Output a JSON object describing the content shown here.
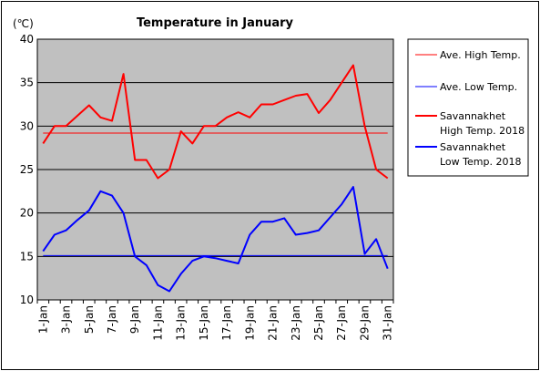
{
  "chart_data": {
    "type": "line",
    "title": "Temperature in January",
    "ylabel": "(℃)",
    "xlabel": "",
    "ylim": [
      10,
      40
    ],
    "yticks": [
      10,
      15,
      20,
      25,
      30,
      35,
      40
    ],
    "grid": true,
    "legend_position": "right",
    "x": [
      "1-Jan",
      "2-Jan",
      "3-Jan",
      "4-Jan",
      "5-Jan",
      "6-Jan",
      "7-Jan",
      "8-Jan",
      "9-Jan",
      "10-Jan",
      "11-Jan",
      "12-Jan",
      "13-Jan",
      "14-Jan",
      "15-Jan",
      "16-Jan",
      "17-Jan",
      "18-Jan",
      "19-Jan",
      "20-Jan",
      "21-Jan",
      "22-Jan",
      "23-Jan",
      "24-Jan",
      "25-Jan",
      "26-Jan",
      "27-Jan",
      "28-Jan",
      "29-Jan",
      "30-Jan",
      "31-Jan"
    ],
    "xtick_labels": [
      "1-Jan",
      "3-Jan",
      "5-Jan",
      "7-Jan",
      "9-Jan",
      "11-Jan",
      "13-Jan",
      "15-Jan",
      "17-Jan",
      "19-Jan",
      "21-Jan",
      "23-Jan",
      "25-Jan",
      "27-Jan",
      "29-Jan",
      "31-Jan"
    ],
    "series": [
      {
        "name": "Ave. High Temp.",
        "color": "#ff0000",
        "style": "thin",
        "values": [
          29.2,
          29.2,
          29.2,
          29.2,
          29.2,
          29.2,
          29.2,
          29.2,
          29.2,
          29.2,
          29.2,
          29.2,
          29.2,
          29.2,
          29.2,
          29.2,
          29.2,
          29.2,
          29.2,
          29.2,
          29.2,
          29.2,
          29.2,
          29.2,
          29.2,
          29.2,
          29.2,
          29.2,
          29.2,
          29.2,
          29.2
        ]
      },
      {
        "name": "Ave. Low Temp.",
        "color": "#0000ff",
        "style": "thin",
        "values": [
          15.1,
          15.1,
          15.1,
          15.1,
          15.1,
          15.1,
          15.1,
          15.1,
          15.1,
          15.1,
          15.1,
          15.1,
          15.1,
          15.1,
          15.1,
          15.1,
          15.1,
          15.1,
          15.1,
          15.1,
          15.1,
          15.1,
          15.1,
          15.1,
          15.1,
          15.1,
          15.1,
          15.1,
          15.1,
          15.1,
          15.1
        ]
      },
      {
        "name": "Savannakhet High Temp. 2018",
        "color": "#ff0000",
        "style": "thick",
        "values": [
          28,
          30,
          30,
          31.2,
          32.4,
          31,
          30.6,
          36,
          26.1,
          26.1,
          24,
          25,
          29.4,
          28,
          30,
          30,
          31,
          31.6,
          31,
          32.5,
          32.5,
          33,
          33.5,
          33.7,
          31.5,
          33,
          35,
          37,
          30,
          25,
          24
        ]
      },
      {
        "name": "Savannakhet Low Temp. 2018",
        "color": "#0000ff",
        "style": "thick",
        "values": [
          15.6,
          17.5,
          18,
          19.2,
          20.3,
          22.5,
          22,
          20,
          15,
          14,
          11.7,
          11,
          13,
          14.5,
          15,
          14.8,
          14.5,
          14.2,
          17.5,
          19,
          19,
          19.4,
          17.5,
          17.7,
          18,
          19.5,
          21,
          23,
          15.3,
          17,
          13.6
        ]
      }
    ],
    "legend": [
      {
        "lines": [
          "Ave. High Temp."
        ]
      },
      {
        "lines": [
          "Ave. Low Temp."
        ]
      },
      {
        "lines": [
          "Savannakhet",
          "High Temp. 2018"
        ]
      },
      {
        "lines": [
          "Savannakhet",
          "Low Temp. 2018"
        ]
      }
    ]
  }
}
